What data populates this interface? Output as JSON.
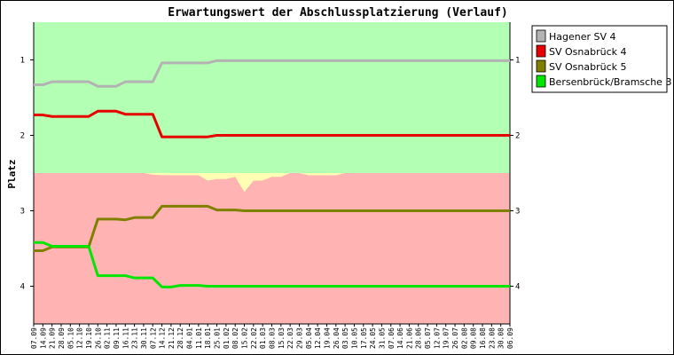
{
  "chart_data": {
    "type": "line",
    "title": "Erwartungswert der Abschlussplatzierung (Verlauf)",
    "ylabel": "Platz",
    "xlabel": "",
    "ylim": [
      4.5,
      0.5
    ],
    "y_inverted": true,
    "y_ticks": [
      1,
      2,
      3,
      4
    ],
    "grid": false,
    "legend_position": "top-right",
    "x": [
      "07.09",
      "14.09",
      "21.09",
      "28.09",
      "05.10",
      "12.10",
      "19.10",
      "26.10",
      "02.11",
      "09.11",
      "16.11",
      "23.11",
      "30.11",
      "07.12",
      "14.12",
      "21.12",
      "28.12",
      "04.01",
      "11.01",
      "18.01",
      "25.01",
      "01.02",
      "08.02",
      "15.02",
      "22.02",
      "01.03",
      "08.03",
      "15.03",
      "22.03",
      "29.03",
      "05.04",
      "12.04",
      "19.04",
      "26.04",
      "03.05",
      "10.05",
      "17.05",
      "24.05",
      "31.05",
      "07.06",
      "14.06",
      "21.06",
      "28.06",
      "05.07",
      "12.07",
      "19.07",
      "26.07",
      "02.08",
      "09.08",
      "16.08",
      "23.08",
      "30.08",
      "06.09"
    ],
    "bands": [
      {
        "name": "promotion",
        "color": "#b3ffb3",
        "y_range": [
          0.5,
          2.5
        ]
      },
      {
        "name": "relegation",
        "color": "#ffb3b3",
        "y_range": [
          2.5,
          4.5
        ]
      }
    ],
    "boundary_color": "#ffffb3",
    "boundary_line": [
      2.5,
      2.5,
      2.5,
      2.5,
      2.5,
      2.5,
      2.5,
      2.5,
      2.5,
      2.5,
      2.5,
      2.5,
      2.5,
      2.52,
      2.53,
      2.53,
      2.53,
      2.53,
      2.53,
      2.6,
      2.58,
      2.58,
      2.55,
      2.75,
      2.6,
      2.6,
      2.55,
      2.55,
      2.5,
      2.5,
      2.53,
      2.53,
      2.53,
      2.53,
      2.5,
      2.5,
      2.5,
      2.5,
      2.5,
      2.5,
      2.5,
      2.5,
      2.5,
      2.5,
      2.5,
      2.5,
      2.5,
      2.5,
      2.5,
      2.5,
      2.5,
      2.5,
      2.5
    ],
    "series": [
      {
        "name": "Hagener SV 4",
        "color": "#b3b3b3",
        "values": [
          1.33,
          1.33,
          1.29,
          1.29,
          1.29,
          1.29,
          1.29,
          1.35,
          1.35,
          1.35,
          1.29,
          1.29,
          1.29,
          1.29,
          1.04,
          1.04,
          1.04,
          1.04,
          1.04,
          1.04,
          1.01,
          1.01,
          1.01,
          1.01,
          1.01,
          1.01,
          1.01,
          1.01,
          1.01,
          1.01,
          1.01,
          1.01,
          1.01,
          1.01,
          1.01,
          1.01,
          1.01,
          1.01,
          1.01,
          1.01,
          1.01,
          1.01,
          1.01,
          1.01,
          1.01,
          1.01,
          1.01,
          1.01,
          1.01,
          1.01,
          1.01,
          1.01,
          1.01
        ]
      },
      {
        "name": "SV Osnabrück 4",
        "color": "#e60000",
        "values": [
          1.73,
          1.73,
          1.75,
          1.75,
          1.75,
          1.75,
          1.75,
          1.68,
          1.68,
          1.68,
          1.72,
          1.72,
          1.72,
          1.72,
          2.02,
          2.02,
          2.02,
          2.02,
          2.02,
          2.02,
          2.0,
          2.0,
          2.0,
          2.0,
          2.0,
          2.0,
          2.0,
          2.0,
          2.0,
          2.0,
          2.0,
          2.0,
          2.0,
          2.0,
          2.0,
          2.0,
          2.0,
          2.0,
          2.0,
          2.0,
          2.0,
          2.0,
          2.0,
          2.0,
          2.0,
          2.0,
          2.0,
          2.0,
          2.0,
          2.0,
          2.0,
          2.0,
          2.0
        ]
      },
      {
        "name": "SV Osnabrück 5",
        "color": "#808000",
        "values": [
          3.53,
          3.53,
          3.48,
          3.48,
          3.48,
          3.48,
          3.48,
          3.11,
          3.11,
          3.11,
          3.12,
          3.09,
          3.09,
          3.09,
          2.94,
          2.94,
          2.94,
          2.94,
          2.94,
          2.94,
          2.99,
          2.99,
          2.99,
          3.0,
          3.0,
          3.0,
          3.0,
          3.0,
          3.0,
          3.0,
          3.0,
          3.0,
          3.0,
          3.0,
          3.0,
          3.0,
          3.0,
          3.0,
          3.0,
          3.0,
          3.0,
          3.0,
          3.0,
          3.0,
          3.0,
          3.0,
          3.0,
          3.0,
          3.0,
          3.0,
          3.0,
          3.0,
          3.0
        ]
      },
      {
        "name": "Bersenbrück/Bramsche 3",
        "color": "#00e600",
        "values": [
          3.42,
          3.42,
          3.47,
          3.47,
          3.47,
          3.47,
          3.47,
          3.86,
          3.86,
          3.86,
          3.86,
          3.89,
          3.89,
          3.89,
          4.01,
          4.01,
          3.99,
          3.99,
          3.99,
          4.0,
          4.0,
          4.0,
          4.0,
          4.0,
          4.0,
          4.0,
          4.0,
          4.0,
          4.0,
          4.0,
          4.0,
          4.0,
          4.0,
          4.0,
          4.0,
          4.0,
          4.0,
          4.0,
          4.0,
          4.0,
          4.0,
          4.0,
          4.0,
          4.0,
          4.0,
          4.0,
          4.0,
          4.0,
          4.0,
          4.0,
          4.0,
          4.0,
          4.0
        ]
      }
    ]
  }
}
